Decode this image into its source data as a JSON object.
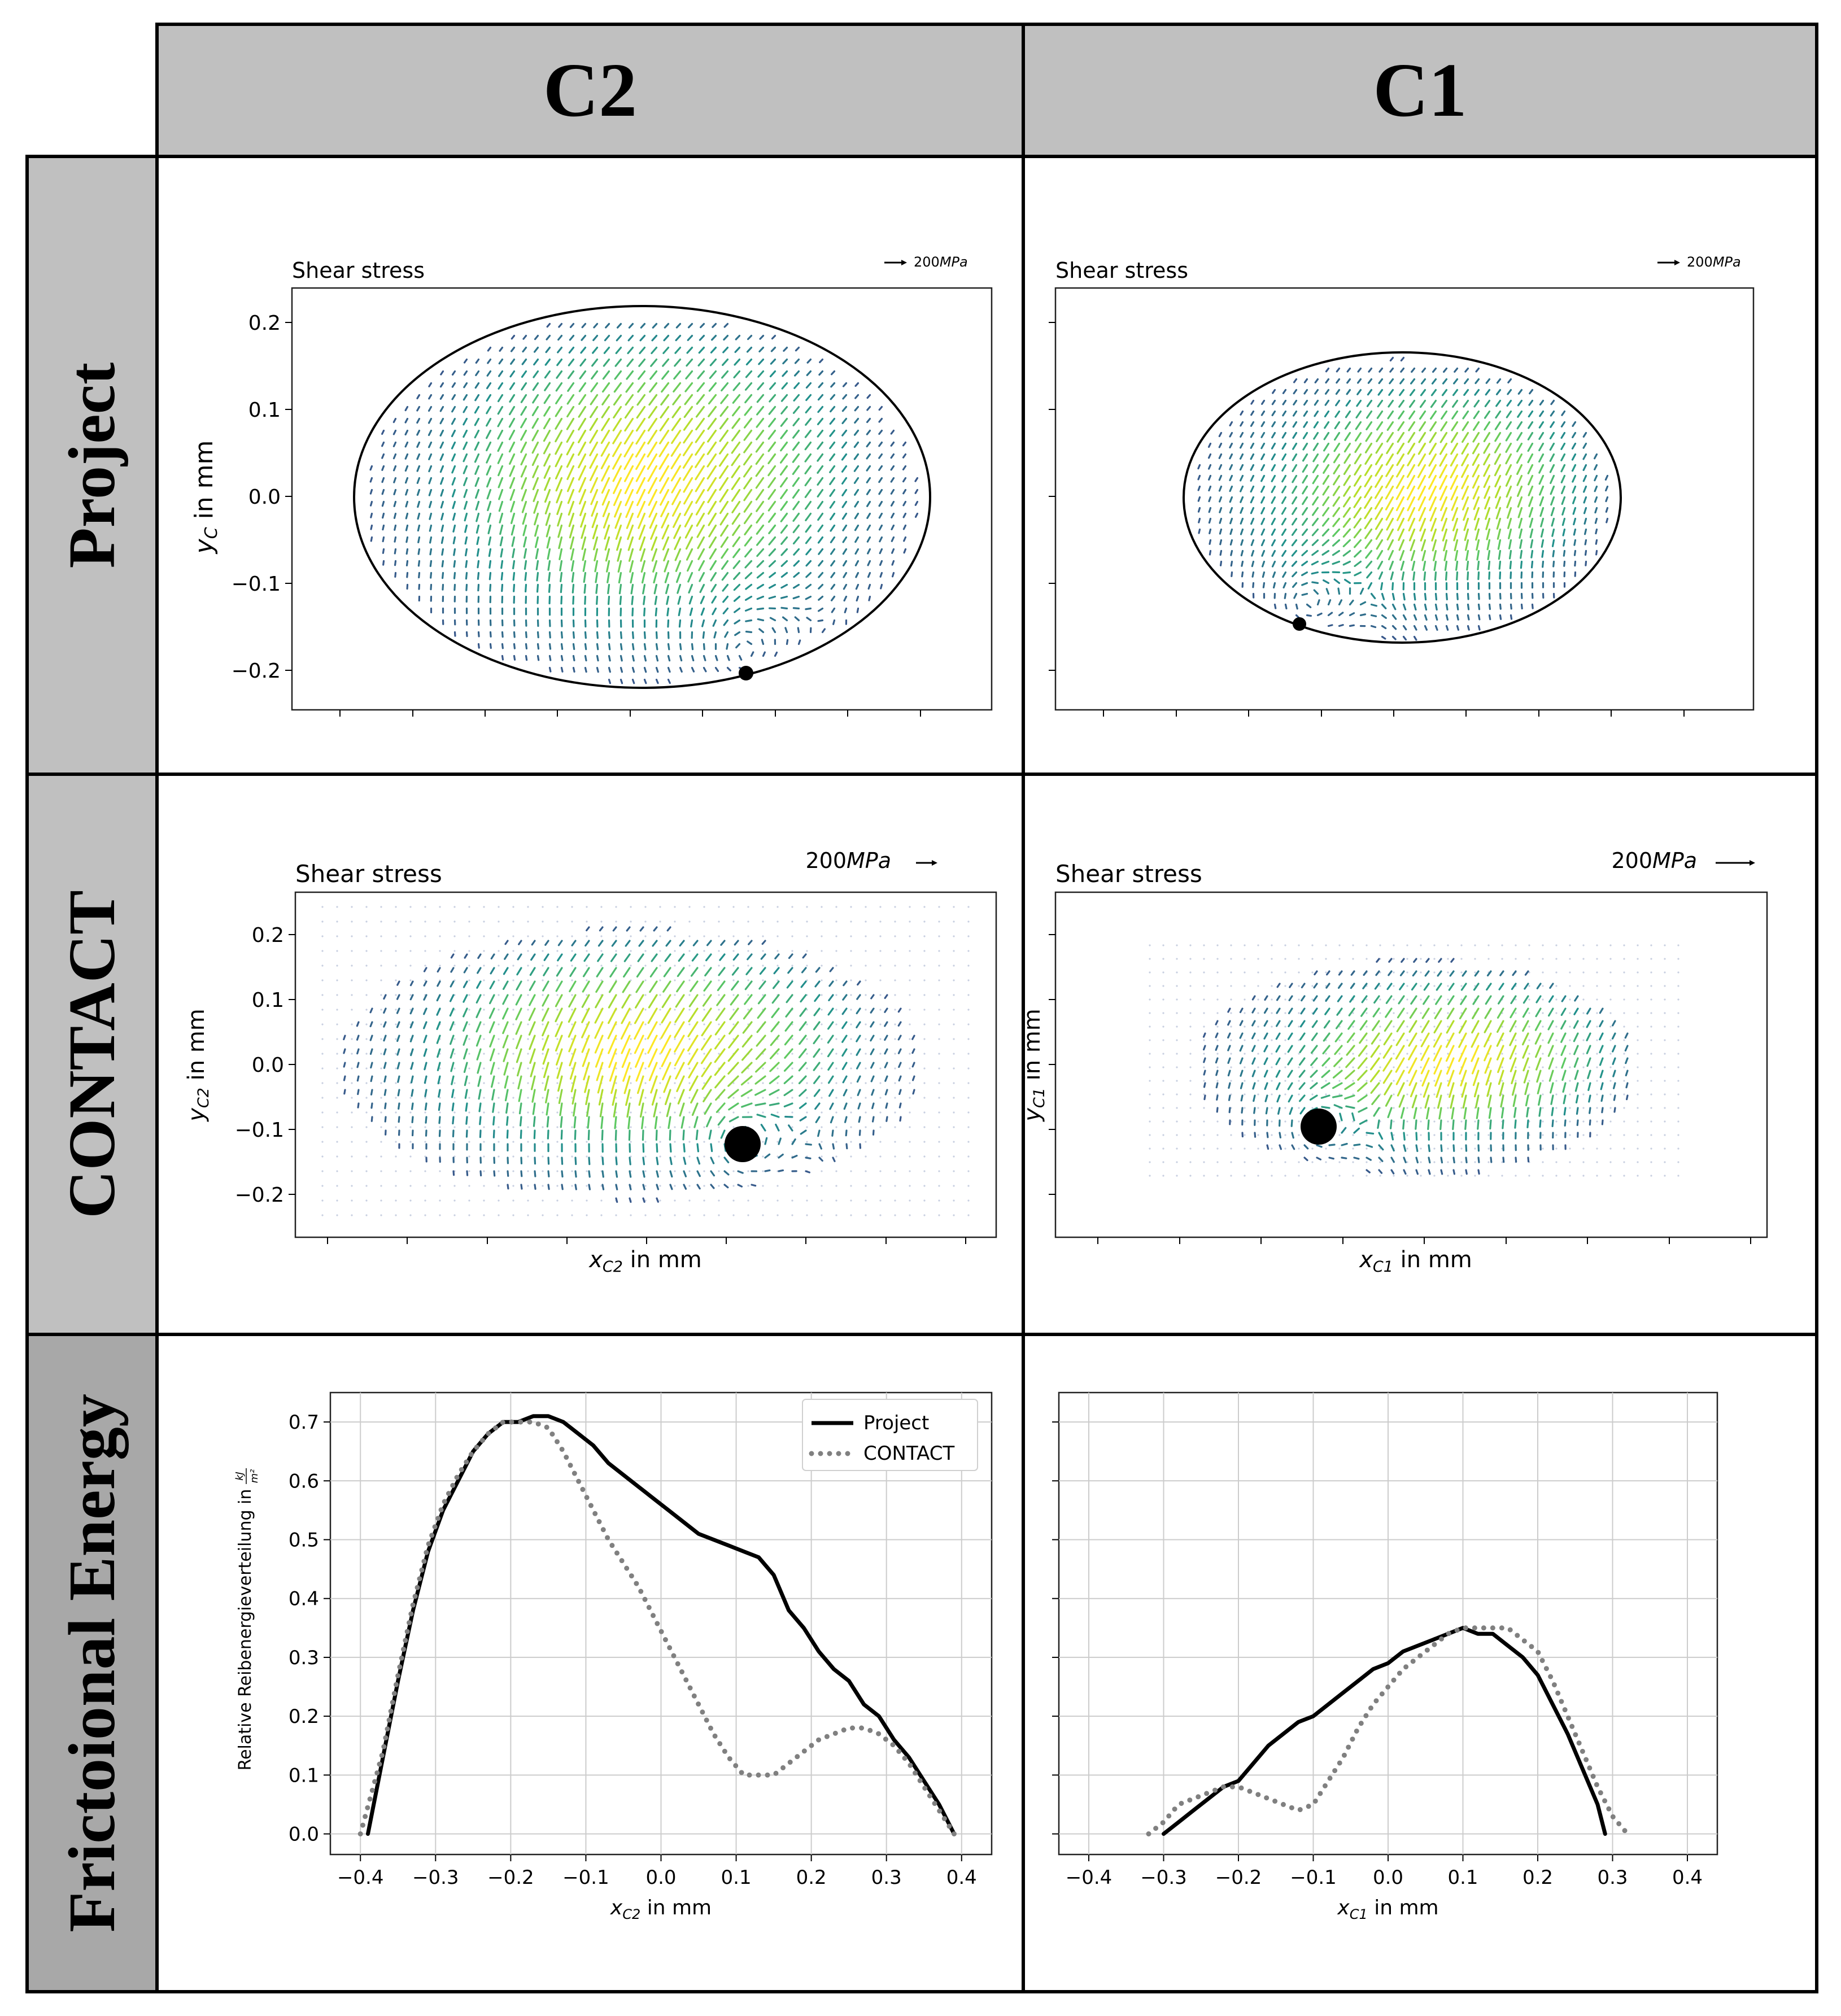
{
  "columns": [
    "C2",
    "C1"
  ],
  "rows": [
    "Project",
    "CONTACT",
    "Frictoional Energy"
  ],
  "quiver_common": {
    "title": "Shear stress",
    "scale_label": "200",
    "scale_unit": "MPa",
    "y_ticks": [
      "0.2",
      "0.1",
      "0.0",
      "−0.1",
      "−0.2"
    ],
    "colormap": [
      "#3b528b",
      "#21918c",
      "#5ec962",
      "#b5de2b",
      "#fde725"
    ]
  },
  "panels": {
    "project_c2": {
      "ylabel": "y",
      "ylabel_sub": "C",
      "ylabel_unit": " in mm"
    },
    "project_c1": {},
    "contact_c2": {
      "ylabel": "y",
      "ylabel_sub": "C2",
      "ylabel_unit": " in mm",
      "xlabel": "x",
      "xlabel_sub": "C2",
      "xlabel_unit": " in mm"
    },
    "contact_c1": {
      "ylabel": "y",
      "ylabel_sub": "C1",
      "ylabel_unit": " in mm",
      "xlabel": "x",
      "xlabel_sub": "C1",
      "xlabel_unit": " in mm"
    }
  },
  "energy": {
    "ylabel": "Relative Reibenergieverteilung in",
    "ylabel_unit_num": "kJ",
    "ylabel_unit_den": "m²",
    "legend": [
      "Project",
      "CONTACT"
    ],
    "series_colors": {
      "Project": "#000000",
      "CONTACT": "#808080"
    },
    "x_ticks": [
      "−0.4",
      "−0.3",
      "−0.2",
      "−0.1",
      "0.0",
      "0.1",
      "0.2",
      "0.3",
      "0.4"
    ],
    "y_ticks": [
      "0.7",
      "0.6",
      "0.5",
      "0.4",
      "0.3",
      "0.2",
      "0.1",
      "0.0"
    ],
    "c2_xlabel": "x",
    "c2_xlabel_sub": "C2",
    "c1_xlabel": "x",
    "c1_xlabel_sub": "C1",
    "xlabel_unit": " in mm"
  },
  "chart_data": [
    {
      "type": "line",
      "title": "",
      "xlabel": "xC2 in mm",
      "ylabel": "Relative Reibenergieverteilung in kJ/m²",
      "xlim": [
        -0.44,
        0.44
      ],
      "ylim": [
        -0.035,
        0.75
      ],
      "grid": true,
      "legend_position": "top-right",
      "series": [
        {
          "name": "Project",
          "x": [
            -0.39,
            -0.37,
            -0.35,
            -0.33,
            -0.31,
            -0.29,
            -0.27,
            -0.25,
            -0.23,
            -0.21,
            -0.19,
            -0.17,
            -0.15,
            -0.13,
            -0.11,
            -0.09,
            -0.07,
            -0.05,
            -0.03,
            -0.01,
            0.01,
            0.03,
            0.05,
            0.07,
            0.09,
            0.11,
            0.13,
            0.15,
            0.17,
            0.19,
            0.21,
            0.23,
            0.25,
            0.27,
            0.29,
            0.31,
            0.33,
            0.35,
            0.37,
            0.39
          ],
          "y": [
            0.0,
            0.13,
            0.26,
            0.38,
            0.48,
            0.55,
            0.6,
            0.65,
            0.68,
            0.7,
            0.7,
            0.71,
            0.71,
            0.7,
            0.68,
            0.66,
            0.63,
            0.61,
            0.59,
            0.57,
            0.55,
            0.53,
            0.51,
            0.5,
            0.49,
            0.48,
            0.47,
            0.44,
            0.38,
            0.35,
            0.31,
            0.28,
            0.26,
            0.22,
            0.2,
            0.16,
            0.13,
            0.09,
            0.05,
            0.0
          ]
        },
        {
          "name": "CONTACT",
          "x": [
            -0.4,
            -0.37,
            -0.35,
            -0.33,
            -0.31,
            -0.29,
            -0.27,
            -0.25,
            -0.23,
            -0.21,
            -0.19,
            -0.17,
            -0.15,
            -0.13,
            -0.11,
            -0.09,
            -0.07,
            -0.05,
            -0.03,
            -0.01,
            0.01,
            0.03,
            0.05,
            0.07,
            0.09,
            0.11,
            0.13,
            0.15,
            0.17,
            0.19,
            0.21,
            0.23,
            0.25,
            0.27,
            0.29,
            0.31,
            0.33,
            0.35,
            0.37,
            0.39
          ],
          "y": [
            0.0,
            0.14,
            0.27,
            0.39,
            0.49,
            0.56,
            0.61,
            0.65,
            0.68,
            0.7,
            0.7,
            0.7,
            0.69,
            0.65,
            0.6,
            0.55,
            0.5,
            0.46,
            0.42,
            0.37,
            0.32,
            0.27,
            0.22,
            0.17,
            0.13,
            0.1,
            0.1,
            0.1,
            0.12,
            0.14,
            0.16,
            0.17,
            0.18,
            0.18,
            0.17,
            0.15,
            0.12,
            0.08,
            0.04,
            0.0
          ]
        }
      ]
    },
    {
      "type": "line",
      "title": "",
      "xlabel": "xC1 in mm",
      "ylabel": "",
      "xlim": [
        -0.44,
        0.44
      ],
      "ylim": [
        -0.035,
        0.75
      ],
      "grid": true,
      "series": [
        {
          "name": "Project",
          "x": [
            -0.3,
            -0.28,
            -0.26,
            -0.24,
            -0.22,
            -0.2,
            -0.18,
            -0.16,
            -0.14,
            -0.12,
            -0.1,
            -0.08,
            -0.06,
            -0.04,
            -0.02,
            0.0,
            0.02,
            0.04,
            0.06,
            0.08,
            0.1,
            0.12,
            0.14,
            0.16,
            0.18,
            0.2,
            0.22,
            0.24,
            0.26,
            0.28,
            0.29
          ],
          "y": [
            0.0,
            0.02,
            0.04,
            0.06,
            0.08,
            0.09,
            0.12,
            0.15,
            0.17,
            0.19,
            0.2,
            0.22,
            0.24,
            0.26,
            0.28,
            0.29,
            0.31,
            0.32,
            0.33,
            0.34,
            0.35,
            0.34,
            0.34,
            0.32,
            0.3,
            0.27,
            0.22,
            0.17,
            0.11,
            0.05,
            0.0
          ]
        },
        {
          "name": "CONTACT",
          "x": [
            -0.32,
            -0.3,
            -0.28,
            -0.26,
            -0.24,
            -0.22,
            -0.2,
            -0.18,
            -0.16,
            -0.14,
            -0.12,
            -0.1,
            -0.08,
            -0.06,
            -0.04,
            -0.02,
            0.0,
            0.02,
            0.04,
            0.06,
            0.08,
            0.1,
            0.12,
            0.14,
            0.16,
            0.18,
            0.2,
            0.22,
            0.24,
            0.26,
            0.28,
            0.3,
            0.32
          ],
          "y": [
            0.0,
            0.02,
            0.05,
            0.06,
            0.07,
            0.08,
            0.08,
            0.07,
            0.06,
            0.05,
            0.04,
            0.05,
            0.09,
            0.13,
            0.18,
            0.22,
            0.25,
            0.28,
            0.3,
            0.32,
            0.34,
            0.35,
            0.35,
            0.35,
            0.35,
            0.33,
            0.31,
            0.26,
            0.2,
            0.14,
            0.08,
            0.03,
            0.0
          ]
        }
      ]
    }
  ]
}
